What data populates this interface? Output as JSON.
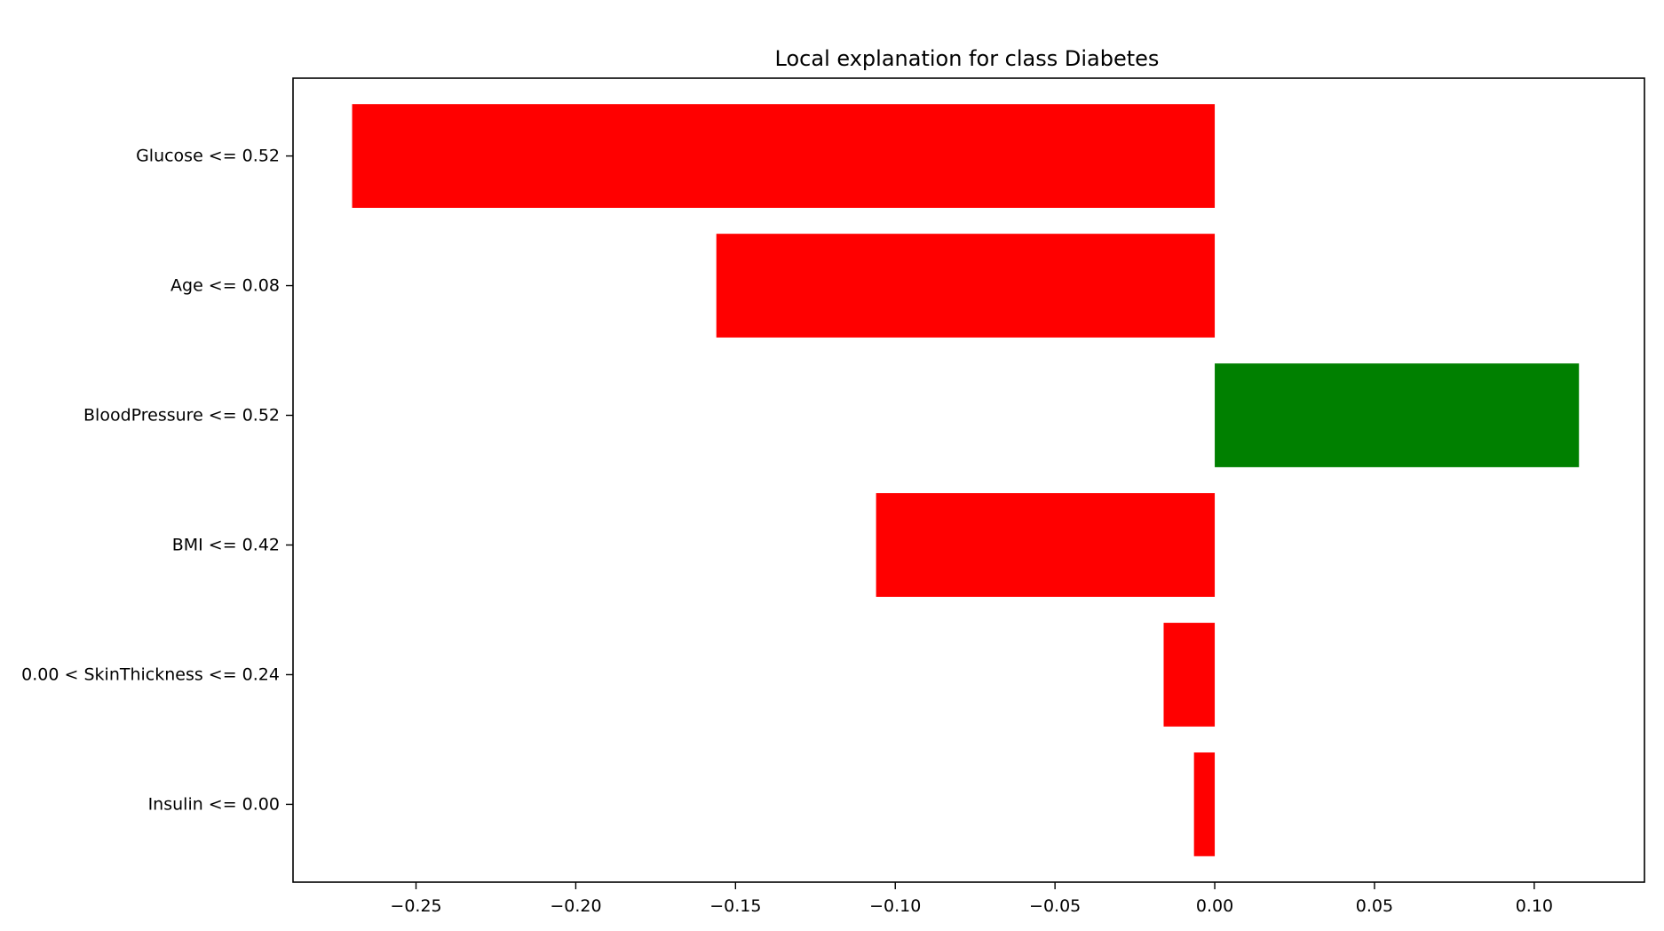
{
  "chart_data": {
    "type": "bar",
    "orientation": "horizontal",
    "title": "Local explanation for class Diabetes",
    "xlabel": "",
    "ylabel": "",
    "categories": [
      "Glucose <= 0.52",
      "Age <= 0.08",
      "BloodPressure <= 0.52",
      "BMI <= 0.42",
      "0.00 < SkinThickness <= 0.24",
      "Insulin <= 0.00"
    ],
    "values": [
      -0.27,
      -0.156,
      0.114,
      -0.106,
      -0.016,
      -0.0065
    ],
    "colors": {
      "positive": "#008000",
      "negative": "#ff0000"
    },
    "xlim": [
      -0.2885,
      0.1345
    ],
    "xticks": [
      -0.25,
      -0.2,
      -0.15,
      -0.1,
      -0.05,
      0.0,
      0.05,
      0.1
    ],
    "xtick_labels": [
      "−0.25",
      "−0.20",
      "−0.15",
      "−0.10",
      "−0.05",
      "0.00",
      "0.05",
      "0.10"
    ],
    "grid": false,
    "legend": "none"
  }
}
